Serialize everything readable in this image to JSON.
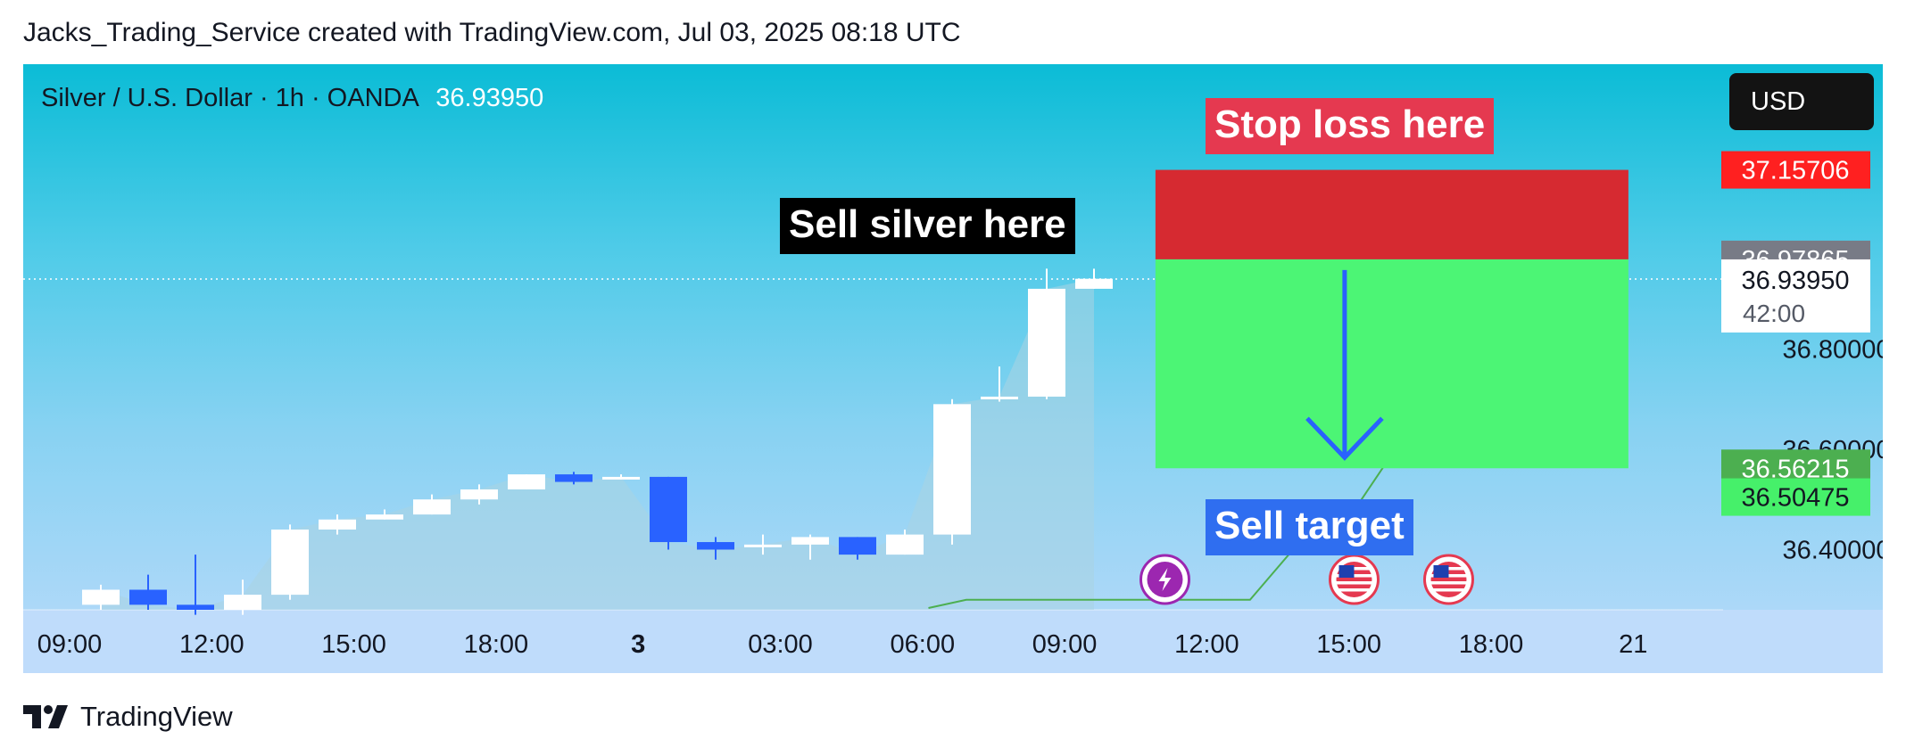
{
  "header": {
    "text": "Jacks_Trading_Service created with TradingView.com, Jul 03, 2025 08:18 UTC"
  },
  "symbol": {
    "title": "Silver / U.S. Dollar · 1h · OANDA",
    "price": "36.93950"
  },
  "currency_button": {
    "label": "USD"
  },
  "annotations": {
    "stop_loss": "Stop loss here",
    "sell_here": "Sell silver here",
    "sell_target": "Sell target"
  },
  "footer": {
    "brand": "TradingView",
    "logo_icon": "tradingview-logo-icon"
  },
  "colors": {
    "up": "#ffffff",
    "down": "#2962ff",
    "stop_zone": "#d62a31",
    "target_zone": "#4cf575",
    "indicator": "#4caf50",
    "arrow": "#2962ff"
  },
  "chart_data": {
    "type": "candlestick",
    "x_labels": [
      "09:00",
      "12:00",
      "15:00",
      "18:00",
      "3",
      "03:00",
      "06:00",
      "09:00",
      "12:00",
      "15:00",
      "18:00",
      "21"
    ],
    "bold_x_label": "3",
    "price_axis_ticks": [
      "36.80000",
      "36.60000",
      "36.40000"
    ],
    "ylim": [
      36.28,
      37.35
    ],
    "current_price": 36.9395,
    "countdown": "42:00",
    "candles": [
      {
        "o": 36.29,
        "h": 36.33,
        "l": 36.28,
        "c": 36.32
      },
      {
        "o": 36.32,
        "h": 36.35,
        "l": 36.28,
        "c": 36.29
      },
      {
        "o": 36.29,
        "h": 36.39,
        "l": 36.27,
        "c": 36.28
      },
      {
        "o": 36.28,
        "h": 36.34,
        "l": 36.27,
        "c": 36.31
      },
      {
        "o": 36.31,
        "h": 36.45,
        "l": 36.3,
        "c": 36.44
      },
      {
        "o": 36.44,
        "h": 36.47,
        "l": 36.43,
        "c": 36.46
      },
      {
        "o": 36.46,
        "h": 36.48,
        "l": 36.46,
        "c": 36.47
      },
      {
        "o": 36.47,
        "h": 36.51,
        "l": 36.47,
        "c": 36.5
      },
      {
        "o": 36.5,
        "h": 36.53,
        "l": 36.49,
        "c": 36.52
      },
      {
        "o": 36.52,
        "h": 36.55,
        "l": 36.52,
        "c": 36.55
      },
      {
        "o": 36.55,
        "h": 36.555,
        "l": 36.53,
        "c": 36.535
      },
      {
        "o": 36.545,
        "h": 36.55,
        "l": 36.54,
        "c": 36.545
      },
      {
        "o": 36.545,
        "h": 36.545,
        "l": 36.4,
        "c": 36.415
      },
      {
        "o": 36.415,
        "h": 36.425,
        "l": 36.38,
        "c": 36.4
      },
      {
        "o": 36.405,
        "h": 36.43,
        "l": 36.39,
        "c": 36.41
      },
      {
        "o": 36.41,
        "h": 36.43,
        "l": 36.38,
        "c": 36.425
      },
      {
        "o": 36.425,
        "h": 36.425,
        "l": 36.38,
        "c": 36.39
      },
      {
        "o": 36.39,
        "h": 36.44,
        "l": 36.39,
        "c": 36.43
      },
      {
        "o": 36.43,
        "h": 36.7,
        "l": 36.41,
        "c": 36.69
      },
      {
        "o": 36.7,
        "h": 36.765,
        "l": 36.695,
        "c": 36.705
      },
      {
        "o": 36.705,
        "h": 36.96,
        "l": 36.7,
        "c": 36.92
      },
      {
        "o": 36.92,
        "h": 36.96,
        "l": 36.92,
        "c": 36.94
      }
    ],
    "indicator_line": {
      "name": "",
      "points": [
        [
          17.5,
          36.28
        ],
        [
          18.3,
          36.3
        ],
        [
          24.3,
          36.3
        ],
        [
          25.3,
          36.41
        ],
        [
          26.3,
          36.45
        ],
        [
          27.3,
          36.59
        ]
      ]
    },
    "short_position": {
      "entry": 36.97865,
      "stop": 37.15706,
      "target": 36.56215,
      "target_line": 36.50475,
      "x_start": 22.3,
      "x_end": 32.3
    },
    "price_labels": [
      {
        "value": 37.15706,
        "text": "37.15706",
        "bg": "#ff2020",
        "color": "#ffffff"
      },
      {
        "value": 36.97865,
        "text": "36.97865",
        "bg": "#787b86",
        "color": "#ffffff"
      },
      {
        "value": 36.56215,
        "text": "36.56215",
        "bg": "#4caf50",
        "color": "#ffffff"
      },
      {
        "value": 36.50475,
        "text": "36.50475",
        "bg": "#46f06a",
        "color": "#131722"
      }
    ],
    "events": [
      {
        "x": 22.5,
        "icon": "lightning-icon"
      },
      {
        "x": 26.5,
        "icon": "us-flag-icon"
      },
      {
        "x": 28.5,
        "icon": "us-flag-icon"
      }
    ]
  }
}
